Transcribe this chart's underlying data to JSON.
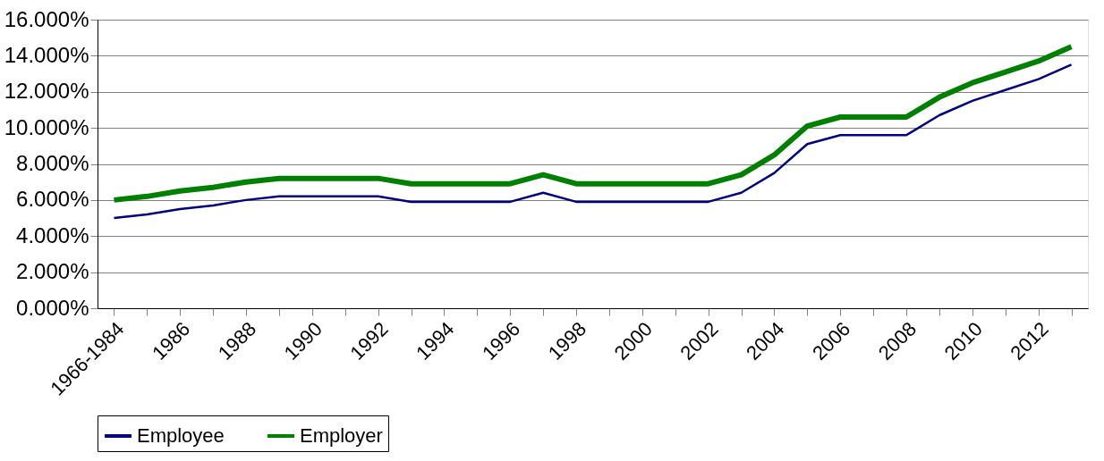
{
  "chart_data": {
    "type": "line",
    "categories": [
      "1966-1984",
      null,
      "1986",
      null,
      "1988",
      null,
      "1990",
      null,
      "1992",
      null,
      "1994",
      null,
      "1996",
      null,
      "1998",
      null,
      "2000",
      null,
      "2002",
      null,
      "2004",
      null,
      "2006",
      null,
      "2008",
      null,
      "2010",
      null,
      "2012",
      null
    ],
    "series": [
      {
        "name": "Employee",
        "color": "#000080",
        "values": [
          5.0,
          5.2,
          5.5,
          5.7,
          6.0,
          6.2,
          6.2,
          6.2,
          6.2,
          5.9,
          5.9,
          5.9,
          5.9,
          6.4,
          5.9,
          5.9,
          5.9,
          5.9,
          5.9,
          6.4,
          7.5,
          9.1,
          9.6,
          9.6,
          9.6,
          10.7,
          11.5,
          12.1,
          12.7,
          13.5
        ]
      },
      {
        "name": "Employer",
        "color": "#008000",
        "values": [
          6.0,
          6.2,
          6.5,
          6.7,
          7.0,
          7.2,
          7.2,
          7.2,
          7.2,
          6.9,
          6.9,
          6.9,
          6.9,
          7.4,
          6.9,
          6.9,
          6.9,
          6.9,
          6.9,
          7.4,
          8.5,
          10.1,
          10.6,
          10.6,
          10.6,
          11.7,
          12.5,
          13.1,
          13.7,
          14.5
        ]
      }
    ],
    "ylim": [
      0,
      16
    ],
    "yticks": [
      {
        "value": 0,
        "label": "0.000%"
      },
      {
        "value": 2,
        "label": "2.000%"
      },
      {
        "value": 4,
        "label": "4.000%"
      },
      {
        "value": 6,
        "label": "6.000%"
      },
      {
        "value": 8,
        "label": "8.000%"
      },
      {
        "value": 10,
        "label": "10.000%"
      },
      {
        "value": 12,
        "label": "12.000%"
      },
      {
        "value": 14,
        "label": "14.000%"
      },
      {
        "value": 16,
        "label": "16.000%"
      }
    ],
    "grid": "y",
    "legend": "bottom",
    "marker": "none",
    "line_style": "solid"
  }
}
